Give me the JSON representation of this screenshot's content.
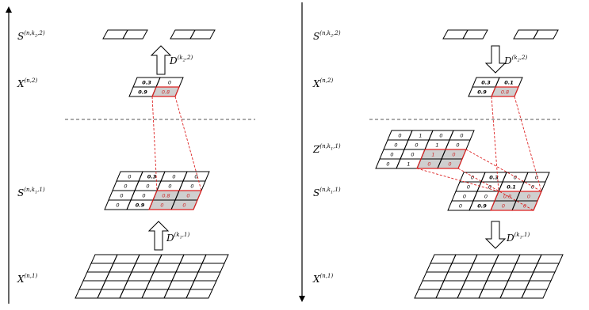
{
  "left": {
    "labels": {
      "s_top": {
        "base": "S",
        "sup": "(n,k",
        "sub": "2",
        "sup_end": ",2)"
      },
      "d_top": {
        "base": "D",
        "sup": "(k",
        "sub": "2",
        "sup_end": ",2)"
      },
      "x2": {
        "base": "X",
        "sup": "(n,2)"
      },
      "s_mid": {
        "base": "S",
        "sup": "(n,k",
        "sub": "1",
        "sup_end": ",1)"
      },
      "d_bot": {
        "base": "D",
        "sup": "(k",
        "sub": "1",
        "sup_end": ",1)"
      },
      "x1": {
        "base": "X",
        "sup": "(n,1)"
      }
    },
    "x2_grid": [
      [
        "0.3",
        "0"
      ],
      [
        "0.9",
        "0.8"
      ]
    ],
    "s_grid": [
      [
        "0",
        "0.3",
        "0",
        "0"
      ],
      [
        "0",
        "0",
        "0",
        "0"
      ],
      [
        "0",
        "0",
        "0.8",
        "0"
      ],
      [
        "0",
        "0.9",
        "0",
        "0"
      ]
    ]
  },
  "right": {
    "labels": {
      "s_top": {
        "base": "S",
        "sup": "(n,k",
        "sub": "2",
        "sup_end": ",2)"
      },
      "d_top": {
        "base": "D",
        "sup": "(k",
        "sub": "2",
        "sup_end": ",2)"
      },
      "x2": {
        "base": "X",
        "sup": "(n,2)"
      },
      "z": {
        "base": "Z",
        "sup": "(n,k",
        "sub": "1",
        "sup_end": ",1)"
      },
      "s_mid": {
        "base": "S",
        "sup": "(n,k",
        "sub": "1",
        "sup_end": ",1)"
      },
      "d_bot": {
        "base": "D",
        "sup": "(k",
        "sub": "1",
        "sup_end": ",1)"
      },
      "x1": {
        "base": "X",
        "sup": "(n,1)"
      }
    },
    "x2_grid": [
      [
        "0.3",
        "0.1"
      ],
      [
        "0.9",
        "0.8"
      ]
    ],
    "z_grid": [
      [
        "0",
        "1",
        "0",
        "0"
      ],
      [
        "0",
        "0",
        "1",
        "0"
      ],
      [
        "0",
        "0",
        "1",
        "0"
      ],
      [
        "0",
        "1",
        "0",
        "0"
      ]
    ],
    "s_grid": [
      [
        "0",
        "0.3",
        "0",
        "0"
      ],
      [
        "0",
        "0",
        "0.1",
        "0"
      ],
      [
        "0",
        "0",
        "0.8",
        "0"
      ],
      [
        "0",
        "0.9",
        "0",
        "0"
      ]
    ]
  },
  "colors": {
    "line": "#000000",
    "highlight_text": "#cc2a2a",
    "highlight_fill": "#cfcfcf",
    "dashed_red": "#dd2222",
    "dashed_divider": "#555555"
  }
}
